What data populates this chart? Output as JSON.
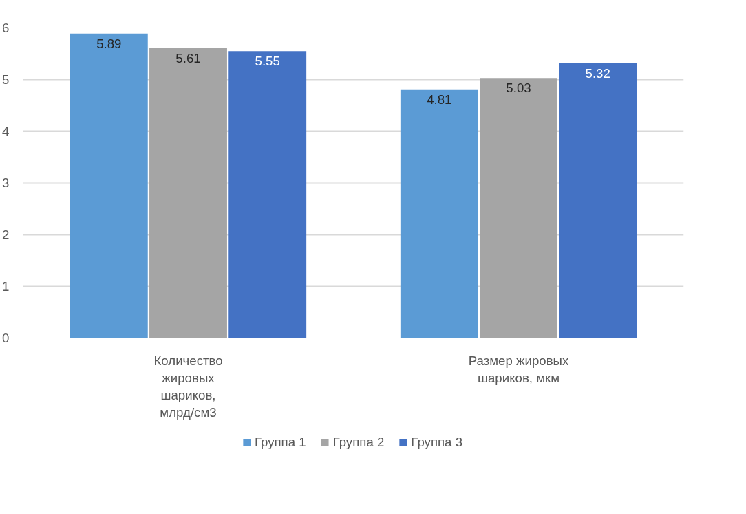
{
  "chart_data": {
    "type": "bar",
    "categories": [
      "Количество жировых шариков, млрд/см3",
      "Размер жировых шариков, мкм"
    ],
    "series": [
      {
        "name": "Группа 1",
        "color": "#5b9bd5",
        "values": [
          5.89,
          4.81
        ]
      },
      {
        "name": "Группа 2",
        "color": "#a5a5a5",
        "values": [
          5.61,
          5.03
        ]
      },
      {
        "name": "Группа 3",
        "color": "#4472c4",
        "values": [
          5.55,
          5.32
        ]
      }
    ],
    "ylim": [
      0,
      6
    ],
    "yticks": [
      0,
      1,
      2,
      3,
      4,
      5,
      6
    ],
    "grid": "y",
    "legend": "bottom",
    "data_labels": true
  }
}
